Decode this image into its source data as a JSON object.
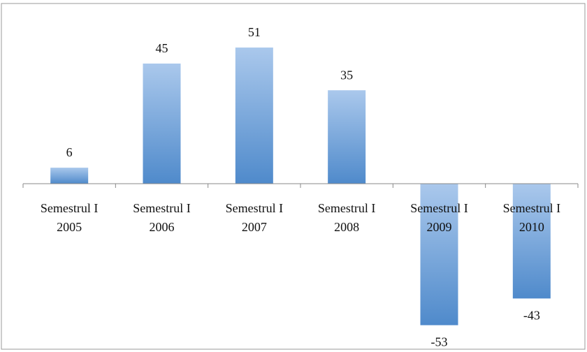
{
  "chart_data": {
    "type": "bar",
    "categories": [
      [
        "Semestrul I",
        "2005"
      ],
      [
        "Semestrul I",
        "2006"
      ],
      [
        "Semestrul I",
        "2007"
      ],
      [
        "Semestrul I",
        "2008"
      ],
      [
        "Semestrul I",
        "2009"
      ],
      [
        "Semestrul I",
        "2010"
      ]
    ],
    "values": [
      6,
      45,
      51,
      35,
      -53,
      -43
    ],
    "color": "#4f8acb",
    "ylim": [
      -62,
      67.5
    ],
    "grid": false
  }
}
